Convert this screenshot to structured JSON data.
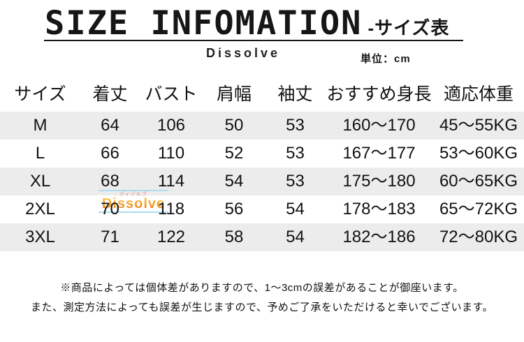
{
  "header": {
    "title": "SIZE INFOMATION",
    "subtitle": "-サイズ表",
    "brand": "Dissolve",
    "unit_label": "単位：cm"
  },
  "chart_data": {
    "type": "table",
    "title": "SIZE INFOMATION -サイズ表",
    "unit": "cm",
    "columns": [
      "サイズ",
      "着丈",
      "バスト",
      "肩幅",
      "袖丈",
      "おすすめ身長",
      "適応体重"
    ],
    "rows": [
      [
        "M",
        "64",
        "106",
        "50",
        "53",
        "160〜170",
        "45〜55KG"
      ],
      [
        "L",
        "66",
        "110",
        "52",
        "53",
        "167〜177",
        "53〜60KG"
      ],
      [
        "XL",
        "68",
        "114",
        "54",
        "53",
        "175〜180",
        "60〜65KG"
      ],
      [
        "2XL",
        "70",
        "118",
        "56",
        "54",
        "178〜183",
        "65〜72KG"
      ],
      [
        "3XL",
        "71",
        "122",
        "58",
        "54",
        "182〜186",
        "72〜80KG"
      ]
    ],
    "layout": {
      "striped_rows": "odd data rows shaded",
      "stripe_color": "#ececec",
      "grid": false
    }
  },
  "watermark": {
    "text": "Dissolve",
    "small_text": "ディゾルブ"
  },
  "notes": {
    "line1": "※商品によっては個体差がありますので、1〜3cmの誤差があることが御座います。",
    "line2": "また、測定方法によっても誤差が生じますので、予めご了承をいただけると幸いでございます。"
  },
  "colors": {
    "text": "#161616",
    "row_stripe": "#ececec",
    "watermark_orange": "#f09b27",
    "watermark_blue": "#aedcf0",
    "watermark_small_red": "#e8837a"
  }
}
